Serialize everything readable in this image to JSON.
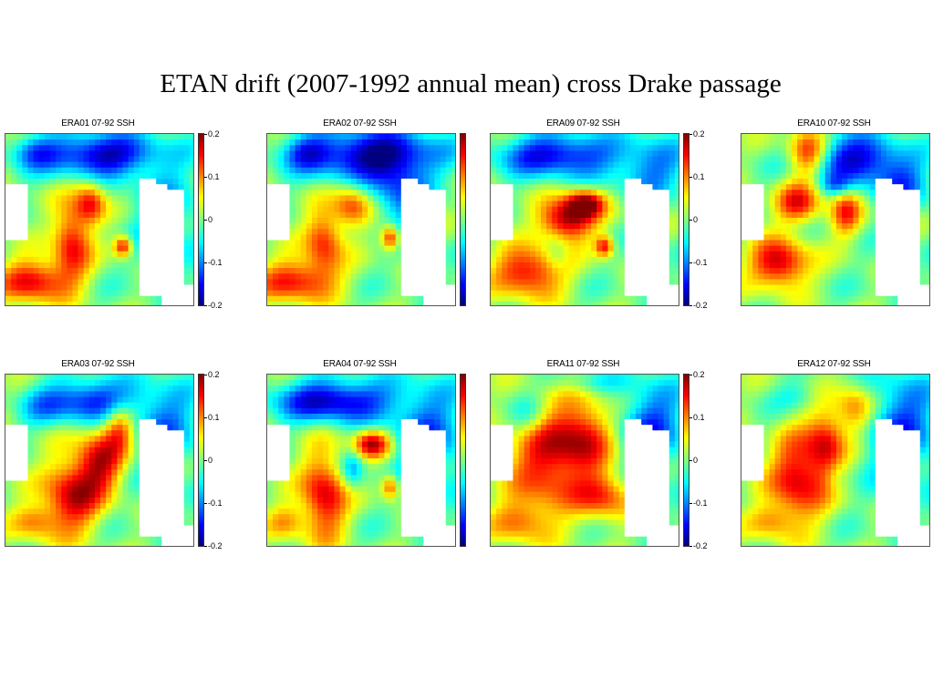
{
  "title": "ETAN drift (2007-1992 annual mean) cross Drake passage",
  "colors": {
    "land": "#ffffff",
    "colormap": "jet"
  },
  "chart_data": [
    {
      "type": "heatmap",
      "title": "ERA01 07-92 SSH",
      "clim": [
        -0.2,
        0.2
      ],
      "colorbar_ticks": [
        "0.2",
        "0.1",
        "0",
        "-0.1",
        "-0.2"
      ],
      "show_tick_labels": true
    },
    {
      "type": "heatmap",
      "title": "ERA02 07-92 SSH",
      "clim": [
        -0.2,
        0.2
      ],
      "colorbar_ticks": [],
      "show_tick_labels": false
    },
    {
      "type": "heatmap",
      "title": "ERA09 07-92 SSH",
      "clim": [
        -0.2,
        0.2
      ],
      "colorbar_ticks": [
        "0.2",
        "0.1",
        "0",
        "-0.1",
        "-0.2"
      ],
      "show_tick_labels": true
    },
    {
      "type": "heatmap",
      "title": "ERA10 07-92 SSH",
      "clim": [
        -0.2,
        0.2
      ],
      "colorbar_ticks": [],
      "show_tick_labels": false
    },
    {
      "type": "heatmap",
      "title": "ERA03 07-92 SSH",
      "clim": [
        -0.2,
        0.2
      ],
      "colorbar_ticks": [
        "0.2",
        "0.1",
        "0",
        "-0.1",
        "-0.2"
      ],
      "show_tick_labels": true
    },
    {
      "type": "heatmap",
      "title": "ERA04 07-92 SSH",
      "clim": [
        -0.2,
        0.2
      ],
      "colorbar_ticks": [],
      "show_tick_labels": false
    },
    {
      "type": "heatmap",
      "title": "ERA11 07-92 SSH",
      "clim": [
        -0.2,
        0.2
      ],
      "colorbar_ticks": [
        "0.2",
        "0.1",
        "0",
        "-0.1",
        "-0.2"
      ],
      "show_tick_labels": true
    },
    {
      "type": "heatmap",
      "title": "ERA12 07-92 SSH",
      "clim": [
        -0.2,
        0.2
      ],
      "colorbar_ticks": [],
      "show_tick_labels": false
    }
  ]
}
